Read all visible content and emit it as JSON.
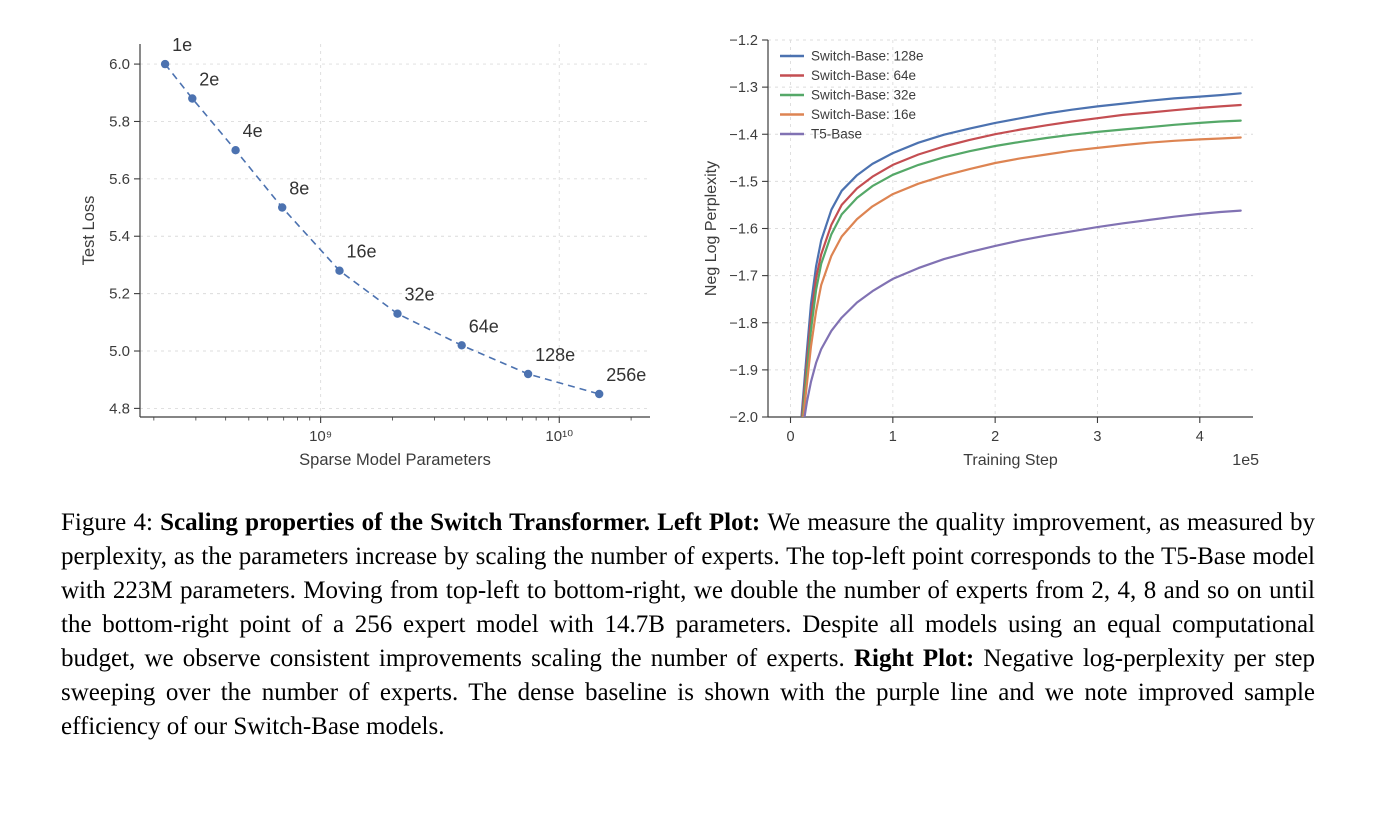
{
  "chart_data": [
    {
      "id": "left",
      "type": "scatter",
      "title": "",
      "xlabel": "Sparse Model Parameters",
      "ylabel": "Test Loss",
      "x_scale": "log",
      "xlim": [
        175000000.0,
        24000000000.0
      ],
      "ylim": [
        4.77,
        6.07
      ],
      "grid": true,
      "line_style": "dashed",
      "color": "#4c72b0",
      "y_ticks": [
        {
          "v": 4.8,
          "label": "4.8"
        },
        {
          "v": 5.0,
          "label": "5.0"
        },
        {
          "v": 5.2,
          "label": "5.2"
        },
        {
          "v": 5.4,
          "label": "5.4"
        },
        {
          "v": 5.6,
          "label": "5.6"
        },
        {
          "v": 5.8,
          "label": "5.8"
        },
        {
          "v": 6.0,
          "label": "6.0"
        }
      ],
      "x_ticks": [
        {
          "v": 1000000000.0,
          "label": "10⁹"
        },
        {
          "v": 10000000000.0,
          "label": "10¹⁰"
        }
      ],
      "points": [
        {
          "label": "1e",
          "x": 223000000.0,
          "y": 6.0
        },
        {
          "label": "2e",
          "x": 290000000.0,
          "y": 5.88
        },
        {
          "label": "4e",
          "x": 440000000.0,
          "y": 5.7
        },
        {
          "label": "8e",
          "x": 690000000.0,
          "y": 5.5
        },
        {
          "label": "16e",
          "x": 1200000000.0,
          "y": 5.28
        },
        {
          "label": "32e",
          "x": 2100000000.0,
          "y": 5.13
        },
        {
          "label": "64e",
          "x": 3900000000.0,
          "y": 5.02
        },
        {
          "label": "128e",
          "x": 7400000000.0,
          "y": 4.92
        },
        {
          "label": "256e",
          "x": 14700000000.0,
          "y": 4.85
        }
      ]
    },
    {
      "id": "right",
      "type": "line",
      "title": "",
      "xlabel": "Training Step",
      "ylabel": "Neg Log Perplexity",
      "x_offset_label": "1e5",
      "x_scale": "linear",
      "xlim": [
        -0.22,
        4.52
      ],
      "ylim": [
        -2.0,
        -1.2
      ],
      "grid": true,
      "legend_position": "top-left",
      "y_ticks": [
        {
          "v": -2.0,
          "label": "−2.0"
        },
        {
          "v": -1.9,
          "label": "−1.9"
        },
        {
          "v": -1.8,
          "label": "−1.8"
        },
        {
          "v": -1.7,
          "label": "−1.7"
        },
        {
          "v": -1.6,
          "label": "−1.6"
        },
        {
          "v": -1.5,
          "label": "−1.5"
        },
        {
          "v": -1.4,
          "label": "−1.4"
        },
        {
          "v": -1.3,
          "label": "−1.3"
        },
        {
          "v": -1.2,
          "label": "−1.2"
        }
      ],
      "x_ticks": [
        {
          "v": 0,
          "label": "0"
        },
        {
          "v": 1,
          "label": "1"
        },
        {
          "v": 2,
          "label": "2"
        },
        {
          "v": 3,
          "label": "3"
        },
        {
          "v": 4,
          "label": "4"
        }
      ],
      "x": [
        0.1,
        0.13,
        0.16,
        0.2,
        0.25,
        0.3,
        0.4,
        0.5,
        0.65,
        0.8,
        1.0,
        1.25,
        1.5,
        1.75,
        2.0,
        2.25,
        2.5,
        2.75,
        3.0,
        3.25,
        3.5,
        3.75,
        4.0,
        4.2,
        4.4
      ],
      "series": [
        {
          "name": "Switch-Base: 128e",
          "color": "#4c72b0",
          "values": [
            -2.02,
            -1.94,
            -1.86,
            -1.76,
            -1.68,
            -1.625,
            -1.56,
            -1.52,
            -1.487,
            -1.463,
            -1.44,
            -1.418,
            -1.401,
            -1.388,
            -1.376,
            -1.366,
            -1.356,
            -1.348,
            -1.341,
            -1.335,
            -1.329,
            -1.324,
            -1.32,
            -1.317,
            -1.313
          ]
        },
        {
          "name": "Switch-Base: 64e",
          "color": "#c44e52",
          "values": [
            -2.03,
            -1.96,
            -1.885,
            -1.79,
            -1.705,
            -1.655,
            -1.592,
            -1.55,
            -1.515,
            -1.49,
            -1.465,
            -1.443,
            -1.426,
            -1.412,
            -1.4,
            -1.39,
            -1.381,
            -1.373,
            -1.366,
            -1.359,
            -1.354,
            -1.349,
            -1.344,
            -1.341,
            -1.338
          ]
        },
        {
          "name": "Switch-Base: 32e",
          "color": "#55a868",
          "values": [
            -2.04,
            -1.975,
            -1.905,
            -1.815,
            -1.73,
            -1.675,
            -1.612,
            -1.57,
            -1.535,
            -1.51,
            -1.486,
            -1.465,
            -1.449,
            -1.436,
            -1.425,
            -1.416,
            -1.408,
            -1.401,
            -1.395,
            -1.39,
            -1.385,
            -1.38,
            -1.376,
            -1.373,
            -1.371
          ]
        },
        {
          "name": "Switch-Base: 16e",
          "color": "#dd8452",
          "values": [
            -2.05,
            -1.99,
            -1.93,
            -1.85,
            -1.775,
            -1.72,
            -1.658,
            -1.617,
            -1.58,
            -1.553,
            -1.527,
            -1.505,
            -1.488,
            -1.474,
            -1.461,
            -1.451,
            -1.443,
            -1.435,
            -1.429,
            -1.423,
            -1.418,
            -1.414,
            -1.411,
            -1.409,
            -1.407
          ]
        },
        {
          "name": "T5-Base",
          "color": "#8172b3",
          "values": [
            -2.06,
            -2.01,
            -1.968,
            -1.925,
            -1.885,
            -1.856,
            -1.817,
            -1.789,
            -1.757,
            -1.733,
            -1.707,
            -1.684,
            -1.665,
            -1.65,
            -1.637,
            -1.625,
            -1.615,
            -1.606,
            -1.597,
            -1.589,
            -1.582,
            -1.575,
            -1.569,
            -1.565,
            -1.562
          ]
        }
      ]
    }
  ],
  "caption": {
    "segments": [
      {
        "bold": false,
        "text": "Figure 4: "
      },
      {
        "bold": true,
        "text": "Scaling properties of the Switch Transformer. Left Plot: "
      },
      {
        "bold": false,
        "text": "We measure the quality improvement, as measured by perplexity, as the parameters increase by scaling the number of experts. The top-left point corresponds to the T5-Base model with 223M parameters. Moving from top-left to bottom-right, we double the number of experts from 2, 4, 8 and so on until the bottom-right point of a 256 expert model with 14.7B parameters. Despite all models using an equal computational budget, we observe consistent improvements scaling the number of experts. "
      },
      {
        "bold": true,
        "text": "Right Plot: "
      },
      {
        "bold": false,
        "text": "Negative log-perplexity per step sweeping over the number of experts. The dense baseline is shown with the purple line and we note improved sample efficiency of our Switch-Base models."
      }
    ]
  },
  "colors": {
    "blue": "#4c72b0",
    "red": "#c44e52",
    "green": "#55a868",
    "orange": "#dd8452",
    "purple": "#8172b3",
    "axis": "#3c3c3c",
    "grid": "#dcdcdc",
    "text": "#3c3c3c"
  }
}
